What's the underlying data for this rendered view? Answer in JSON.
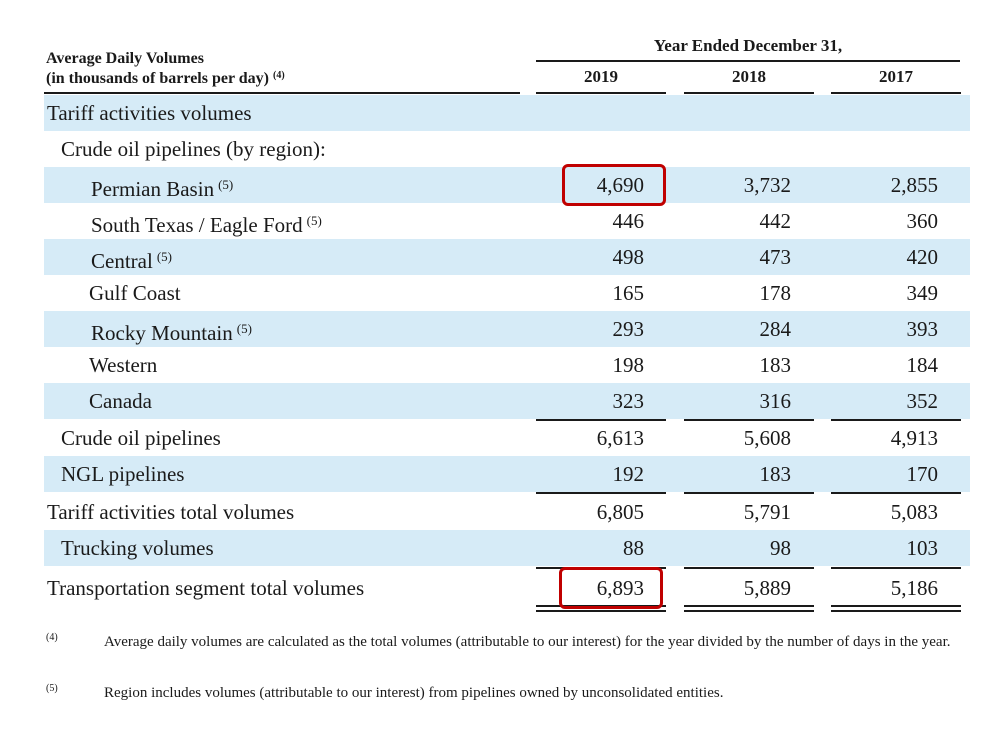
{
  "header": {
    "col_title_line1": "Average Daily Volumes",
    "col_title_line2": "(in thousands of barrels per day)",
    "col_title_note": "(4)",
    "group_title": "Year Ended December 31,",
    "years": [
      "2019",
      "2018",
      "2017"
    ]
  },
  "rows": [
    {
      "label": "Tariff activities volumes",
      "note": "",
      "values": [
        "",
        "",
        ""
      ]
    },
    {
      "label": "Crude oil pipelines (by region):",
      "note": "",
      "values": [
        "",
        "",
        ""
      ]
    },
    {
      "label": "Permian Basin",
      "note": "(5)",
      "values": [
        "4,690",
        "3,732",
        "2,855"
      ]
    },
    {
      "label": "South Texas / Eagle Ford",
      "note": "(5)",
      "values": [
        "446",
        "442",
        "360"
      ]
    },
    {
      "label": "Central",
      "note": "(5)",
      "values": [
        "498",
        "473",
        "420"
      ]
    },
    {
      "label": "Gulf Coast",
      "note": "",
      "values": [
        "165",
        "178",
        "349"
      ]
    },
    {
      "label": "Rocky Mountain",
      "note": "(5)",
      "values": [
        "293",
        "284",
        "393"
      ]
    },
    {
      "label": "Western",
      "note": "",
      "values": [
        "198",
        "183",
        "184"
      ]
    },
    {
      "label": "Canada",
      "note": "",
      "values": [
        "323",
        "316",
        "352"
      ]
    },
    {
      "label": "Crude oil pipelines",
      "note": "",
      "values": [
        "6,613",
        "5,608",
        "4,913"
      ]
    },
    {
      "label": "NGL pipelines",
      "note": "",
      "values": [
        "192",
        "183",
        "170"
      ]
    },
    {
      "label": "Tariff activities total volumes",
      "note": "",
      "values": [
        "6,805",
        "5,791",
        "5,083"
      ]
    },
    {
      "label": "Trucking volumes",
      "note": "",
      "values": [
        "88",
        "98",
        "103"
      ]
    },
    {
      "label": "Transportation segment total volumes",
      "note": "",
      "values": [
        "6,893",
        "5,889",
        "5,186"
      ]
    }
  ],
  "footnotes": [
    {
      "mark": "(4)",
      "text": "Average daily volumes are calculated as the total volumes (attributable to our interest) for the year divided by the number of days in the year."
    },
    {
      "mark": "(5)",
      "text": "Region includes volumes (attributable to our interest) from pipelines owned by unconsolidated entities."
    }
  ],
  "colors": {
    "row_shade": "#d6ebf7",
    "highlight": "#c00000"
  }
}
